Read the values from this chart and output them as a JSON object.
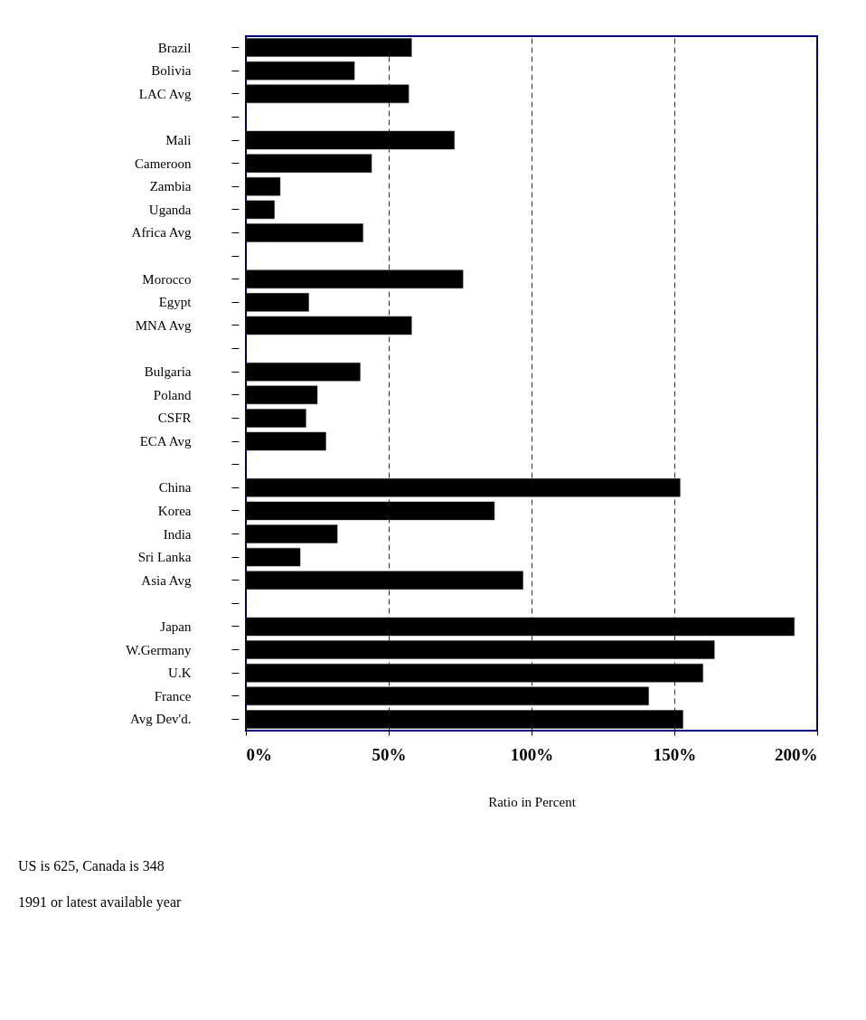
{
  "chart_data": {
    "type": "bar",
    "orientation": "horizontal",
    "xlabel": "Ratio in Percent",
    "categories": [
      "Brazil",
      "Bolivia",
      "LAC Avg",
      null,
      "Mali",
      "Cameroon",
      "Zambia",
      "Uganda",
      "Africa Avg",
      null,
      "Morocco",
      "Egypt",
      "MNA Avg",
      null,
      "Bulgaria",
      "Poland",
      "CSFR",
      "ECA Avg",
      null,
      "China",
      "Korea",
      "India",
      "Sri Lanka",
      "Asia Avg",
      null,
      "Japan",
      "W.Germany",
      "U.K",
      "France",
      "Avg Dev'd."
    ],
    "values": [
      58,
      38,
      57,
      null,
      73,
      44,
      12,
      10,
      41,
      null,
      76,
      22,
      58,
      null,
      40,
      25,
      21,
      28,
      null,
      152,
      87,
      32,
      19,
      97,
      null,
      192,
      164,
      160,
      141,
      153
    ],
    "color": "#000000",
    "xlim": [
      0,
      200
    ],
    "xticks": [
      {
        "value": 0,
        "label": "0%"
      },
      {
        "value": 50,
        "label": "50%"
      },
      {
        "value": 100,
        "label": "100%"
      },
      {
        "value": 150,
        "label": "150%"
      },
      {
        "value": 200,
        "label": "200%"
      }
    ],
    "grid": "x",
    "line_style": "dashed",
    "annotations": [
      "US is 625, Canada is 348",
      "1991 or latest available year"
    ]
  }
}
